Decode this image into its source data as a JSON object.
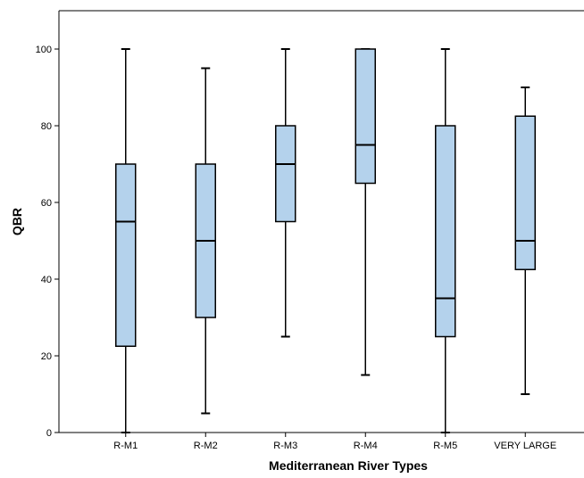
{
  "chart_data": {
    "type": "boxplot",
    "xlabel": "Mediterranean River Types",
    "ylabel": "QBR",
    "ylim": [
      0,
      110
    ],
    "yticks": [
      0,
      20,
      40,
      60,
      80,
      100
    ],
    "grid": false,
    "categories": [
      "R-M1",
      "R-M2",
      "R-M3",
      "R-M4",
      "R-M5",
      "VERY LARGE"
    ],
    "boxes": [
      {
        "category": "R-M1",
        "min": 0,
        "q1": 22.5,
        "median": 55,
        "q3": 70,
        "max": 100
      },
      {
        "category": "R-M2",
        "min": 5,
        "q1": 30,
        "median": 50,
        "q3": 70,
        "max": 95
      },
      {
        "category": "R-M3",
        "min": 25,
        "q1": 55,
        "median": 70,
        "q3": 80,
        "max": 100
      },
      {
        "category": "R-M4",
        "min": 15,
        "q1": 65,
        "median": 75,
        "q3": 100,
        "max": 100
      },
      {
        "category": "R-M5",
        "min": 0,
        "q1": 25,
        "median": 35,
        "q3": 80,
        "max": 100
      },
      {
        "category": "VERY LARGE",
        "min": 10,
        "q1": 42.5,
        "median": 50,
        "q3": 82.5,
        "max": 90
      }
    ],
    "colors": {
      "box_fill": "#b4d2ec",
      "stroke": "#000000",
      "background": "#ffffff"
    }
  }
}
